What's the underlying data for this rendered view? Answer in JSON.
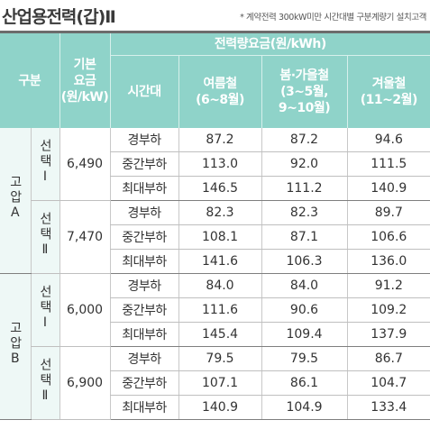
{
  "title": "산업용전력(갑)Ⅱ",
  "note": "* 계약전력 300kW미만 시간대별 구분계량기 설치고객",
  "header": {
    "type": "구분",
    "base_fee": [
      "기본",
      "요금",
      "(원/kW)"
    ],
    "energy_group": "전력량요금(원/kWh)",
    "period": "시간대",
    "summer": [
      "여름철",
      "(6~8월)"
    ],
    "spring_fall": [
      "봄·가을철",
      "(3~5월,",
      "9~10월)"
    ],
    "winter": [
      "겨울철",
      "(11~2월)"
    ]
  },
  "groups": [
    {
      "type": "고압A",
      "options": [
        {
          "option": "선택Ⅰ",
          "base_fee": "6,490",
          "rows": [
            {
              "period": "경부하",
              "summer": "87.2",
              "spring_fall": "87.2",
              "winter": "94.6"
            },
            {
              "period": "중간부하",
              "summer": "113.0",
              "spring_fall": "92.0",
              "winter": "111.5"
            },
            {
              "period": "최대부하",
              "summer": "146.5",
              "spring_fall": "111.2",
              "winter": "140.9"
            }
          ]
        },
        {
          "option": "선택Ⅱ",
          "base_fee": "7,470",
          "rows": [
            {
              "period": "경부하",
              "summer": "82.3",
              "spring_fall": "82.3",
              "winter": "89.7"
            },
            {
              "period": "중간부하",
              "summer": "108.1",
              "spring_fall": "87.1",
              "winter": "106.6"
            },
            {
              "period": "최대부하",
              "summer": "141.6",
              "spring_fall": "106.3",
              "winter": "136.0"
            }
          ]
        }
      ]
    },
    {
      "type": "고압B",
      "options": [
        {
          "option": "선택Ⅰ",
          "base_fee": "6,000",
          "rows": [
            {
              "period": "경부하",
              "summer": "84.0",
              "spring_fall": "84.0",
              "winter": "91.2"
            },
            {
              "period": "중간부하",
              "summer": "111.6",
              "spring_fall": "90.6",
              "winter": "109.2"
            },
            {
              "period": "최대부하",
              "summer": "145.4",
              "spring_fall": "109.4",
              "winter": "137.9"
            }
          ]
        },
        {
          "option": "선택Ⅱ",
          "base_fee": "6,900",
          "rows": [
            {
              "period": "경부하",
              "summer": "79.5",
              "spring_fall": "79.5",
              "winter": "86.7"
            },
            {
              "period": "중간부하",
              "summer": "107.1",
              "spring_fall": "86.1",
              "winter": "104.7"
            },
            {
              "period": "최대부하",
              "summer": "140.9",
              "spring_fall": "104.9",
              "winter": "133.4"
            }
          ]
        }
      ]
    }
  ]
}
